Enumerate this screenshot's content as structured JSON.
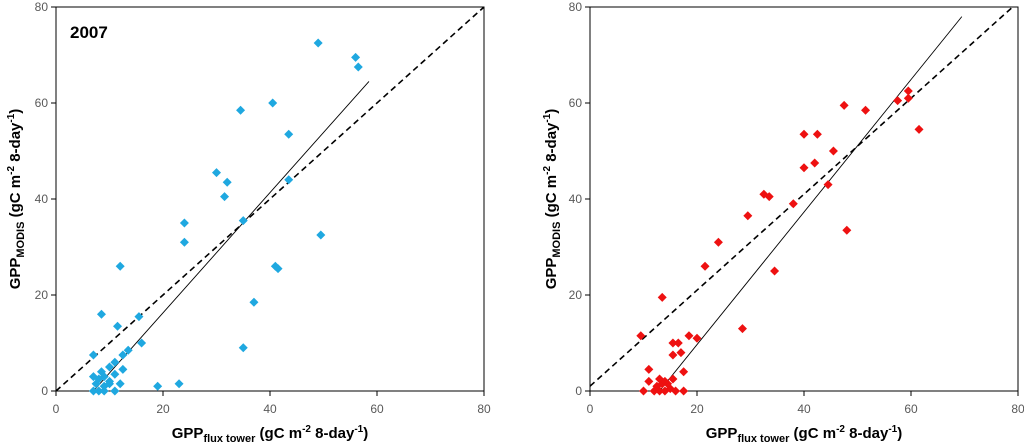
{
  "chart_data": [
    {
      "type": "scatter",
      "title": "2007",
      "xlabel": {
        "main": "GPP",
        "sub": "flux tower",
        "unit_a": " (gC m",
        "sup_a": "-2",
        "unit_b": " 8-day",
        "sup_b": "-1",
        "unit_c": ")"
      },
      "ylabel": {
        "main": "GPP",
        "sub": "MODIS",
        "unit_a": " (gC m",
        "sup_a": "-2",
        "unit_b": " 8-day",
        "sup_b": "-1",
        "unit_c": ")"
      },
      "xlim": [
        0,
        80
      ],
      "ylim": [
        0,
        80
      ],
      "xticks": [
        "0",
        "20",
        "40",
        "60",
        "80"
      ],
      "yticks": [
        "0",
        "20",
        "40",
        "60",
        "80"
      ],
      "marker_color": "#1fa8e0",
      "marker": "diamond",
      "points": [
        [
          7,
          0
        ],
        [
          8,
          0
        ],
        [
          9,
          0
        ],
        [
          11,
          0
        ],
        [
          7.5,
          1.5
        ],
        [
          9,
          1
        ],
        [
          10,
          1.5
        ],
        [
          12,
          1.5
        ],
        [
          8,
          2.5
        ],
        [
          10,
          2
        ],
        [
          7,
          3
        ],
        [
          9,
          3
        ],
        [
          8.5,
          4
        ],
        [
          11,
          3.5
        ],
        [
          12.5,
          4.5
        ],
        [
          10,
          5
        ],
        [
          11,
          6
        ],
        [
          12.5,
          7.5
        ],
        [
          13.5,
          8.5
        ],
        [
          7,
          7.5
        ],
        [
          16,
          10
        ],
        [
          15.5,
          15.5
        ],
        [
          11.5,
          13.5
        ],
        [
          8.5,
          16
        ],
        [
          12,
          26
        ],
        [
          19,
          1
        ],
        [
          23,
          1.5
        ],
        [
          35,
          9
        ],
        [
          37,
          18.5
        ],
        [
          41,
          26
        ],
        [
          41.5,
          25.5
        ],
        [
          35,
          35.5
        ],
        [
          24,
          31
        ],
        [
          24,
          35
        ],
        [
          30,
          45.5
        ],
        [
          32,
          43.5
        ],
        [
          31.5,
          40.5
        ],
        [
          34.5,
          58.5
        ],
        [
          40.5,
          60
        ],
        [
          43.5,
          53.5
        ],
        [
          43.5,
          44
        ],
        [
          49.5,
          32.5
        ],
        [
          49,
          72.5
        ],
        [
          56,
          69.5
        ],
        [
          56.5,
          67.5
        ]
      ],
      "regression": {
        "x": [
          7,
          58.5
        ],
        "y": [
          0,
          64.5
        ]
      },
      "identity": {
        "x": [
          0,
          80
        ],
        "y": [
          0,
          80
        ]
      }
    },
    {
      "type": "scatter",
      "title": "",
      "xlabel": {
        "main": "GPP",
        "sub": "flux tower",
        "unit_a": " (gC m",
        "sup_a": "-2",
        "unit_b": " 8-day",
        "sup_b": "-1",
        "unit_c": ")"
      },
      "ylabel": {
        "main": "GPP",
        "sub": "MODIS",
        "unit_a": " (gC m",
        "sup_a": "-2",
        "unit_b": " 8-day",
        "sup_b": "-1",
        "unit_c": ")"
      },
      "xlim": [
        0,
        80
      ],
      "ylim": [
        0,
        80
      ],
      "xticks": [
        "0",
        "20",
        "40",
        "60",
        "80"
      ],
      "yticks": [
        "0",
        "20",
        "40",
        "60",
        "80"
      ],
      "marker_color": "#ee1111",
      "marker": "diamond",
      "points": [
        [
          10,
          0
        ],
        [
          12,
          0
        ],
        [
          13,
          0
        ],
        [
          14,
          0
        ],
        [
          15,
          0.5
        ],
        [
          16,
          0
        ],
        [
          17.5,
          0
        ],
        [
          12.5,
          1
        ],
        [
          13.5,
          1.5
        ],
        [
          14.5,
          1.5
        ],
        [
          11,
          2
        ],
        [
          13,
          2.5
        ],
        [
          14,
          2
        ],
        [
          15.5,
          2.5
        ],
        [
          17.5,
          4
        ],
        [
          11,
          4.5
        ],
        [
          15.5,
          7.5
        ],
        [
          16.5,
          10
        ],
        [
          17,
          8
        ],
        [
          18.5,
          11.5
        ],
        [
          20,
          11
        ],
        [
          15.5,
          10
        ],
        [
          9.5,
          11.5
        ],
        [
          13.5,
          19.5
        ],
        [
          21.5,
          26
        ],
        [
          24,
          31
        ],
        [
          28.5,
          13
        ],
        [
          29.5,
          36.5
        ],
        [
          34.5,
          25
        ],
        [
          32.5,
          41
        ],
        [
          33.5,
          40.5
        ],
        [
          38,
          39
        ],
        [
          40,
          46.5
        ],
        [
          42,
          47.5
        ],
        [
          40,
          53.5
        ],
        [
          42.5,
          53.5
        ],
        [
          44.5,
          43
        ],
        [
          45.5,
          50
        ],
        [
          48,
          33.5
        ],
        [
          47.5,
          59.5
        ],
        [
          51.5,
          58.5
        ],
        [
          57.5,
          60.5
        ],
        [
          59.5,
          61
        ],
        [
          59.5,
          62.5
        ],
        [
          61.5,
          54.5
        ]
      ],
      "regression": {
        "x": [
          13,
          69.5
        ],
        "y": [
          0,
          78
        ]
      },
      "identity": {
        "x": [
          0,
          80
        ],
        "y": [
          1,
          81
        ]
      }
    }
  ]
}
